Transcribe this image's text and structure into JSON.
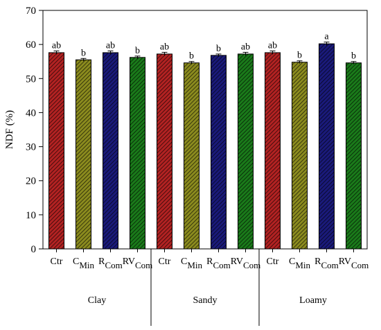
{
  "chart_data": {
    "type": "bar",
    "ylabel": "NDF (%)",
    "ylim": [
      0,
      70
    ],
    "yticks": [
      "0",
      "10",
      "20",
      "30",
      "40",
      "50",
      "60",
      "70"
    ],
    "groups": [
      {
        "name": "Clay",
        "bars": [
          {
            "label": "Ctr",
            "sub": "",
            "value": 57.6,
            "err": 0.5,
            "sig": "ab",
            "color": "#b22222"
          },
          {
            "label": "C",
            "sub": "Min",
            "value": 55.5,
            "err": 0.4,
            "sig": "b",
            "color": "#8b8b1e"
          },
          {
            "label": "R",
            "sub": "Com",
            "value": 57.6,
            "err": 0.5,
            "sig": "ab",
            "color": "#1a1a7a"
          },
          {
            "label": "RV",
            "sub": "Com",
            "value": 56.2,
            "err": 0.4,
            "sig": "b",
            "color": "#1a7a1a"
          }
        ]
      },
      {
        "name": "Sandy",
        "bars": [
          {
            "label": "Ctr",
            "sub": "",
            "value": 57.2,
            "err": 0.5,
            "sig": "ab",
            "color": "#b22222"
          },
          {
            "label": "C",
            "sub": "Min",
            "value": 54.6,
            "err": 0.4,
            "sig": "b",
            "color": "#8b8b1e"
          },
          {
            "label": "R",
            "sub": "Com",
            "value": 56.8,
            "err": 0.4,
            "sig": "b",
            "color": "#1a1a7a"
          },
          {
            "label": "RV",
            "sub": "Com",
            "value": 57.2,
            "err": 0.5,
            "sig": "ab",
            "color": "#1a7a1a"
          }
        ]
      },
      {
        "name": "Loamy",
        "bars": [
          {
            "label": "Ctr",
            "sub": "",
            "value": 57.6,
            "err": 0.5,
            "sig": "ab",
            "color": "#b22222"
          },
          {
            "label": "C",
            "sub": "Min",
            "value": 54.8,
            "err": 0.4,
            "sig": "b",
            "color": "#8b8b1e"
          },
          {
            "label": "R",
            "sub": "Com",
            "value": 60.2,
            "err": 0.5,
            "sig": "a",
            "color": "#1a1a7a"
          },
          {
            "label": "RV",
            "sub": "Com",
            "value": 54.6,
            "err": 0.4,
            "sig": "b",
            "color": "#1a7a1a"
          }
        ]
      }
    ]
  }
}
